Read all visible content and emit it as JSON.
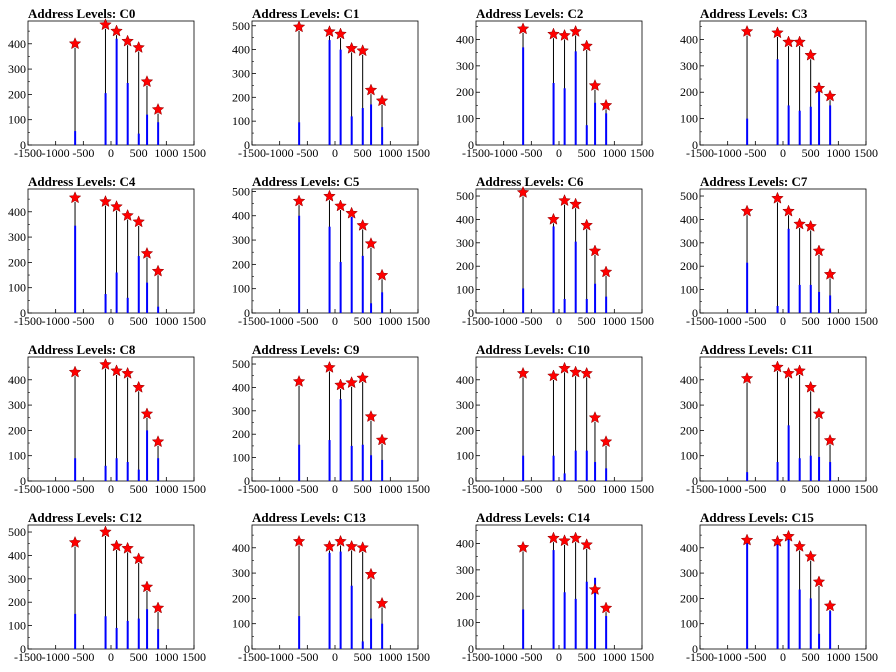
{
  "chart_data": [
    {
      "type": "bar",
      "title": "Address Levels: C0",
      "xlim": [
        -1500,
        1500
      ],
      "ylim": [
        0,
        490
      ],
      "yticks": [
        0,
        100,
        200,
        300,
        400
      ],
      "xticks": [
        "-1500",
        "-1000",
        "-500",
        "0",
        "500",
        "1000",
        "1500"
      ],
      "peaks": [
        {
          "x": -650,
          "y": 400,
          "blue": 55
        },
        {
          "x": -100,
          "y": 475,
          "blue": 205
        },
        {
          "x": 100,
          "y": 450,
          "blue": 420
        },
        {
          "x": 300,
          "y": 410,
          "blue": 245
        },
        {
          "x": 500,
          "y": 385,
          "blue": 45
        },
        {
          "x": 650,
          "y": 250,
          "blue": 120
        },
        {
          "x": 850,
          "y": 140,
          "blue": 90
        }
      ]
    },
    {
      "type": "bar",
      "title": "Address Levels: C1",
      "xlim": [
        -1500,
        1500
      ],
      "ylim": [
        0,
        520
      ],
      "yticks": [
        0,
        100,
        200,
        300,
        400,
        500
      ],
      "xticks": [
        "-1500",
        "-1000",
        "-500",
        "0",
        "500",
        "1000",
        "1500"
      ],
      "peaks": [
        {
          "x": -650,
          "y": 495,
          "blue": 95
        },
        {
          "x": -100,
          "y": 475,
          "blue": 440
        },
        {
          "x": 100,
          "y": 465,
          "blue": 400
        },
        {
          "x": 300,
          "y": 405,
          "blue": 120
        },
        {
          "x": 500,
          "y": 395,
          "blue": 155
        },
        {
          "x": 650,
          "y": 230,
          "blue": 170
        },
        {
          "x": 850,
          "y": 185,
          "blue": 75
        }
      ]
    },
    {
      "type": "bar",
      "title": "Address Levels: C2",
      "xlim": [
        -1500,
        1500
      ],
      "ylim": [
        0,
        470
      ],
      "yticks": [
        0,
        100,
        200,
        300,
        400
      ],
      "xticks": [
        "-1500",
        "-1000",
        "-500",
        "0",
        "500",
        "1000",
        "1500"
      ],
      "peaks": [
        {
          "x": -650,
          "y": 440,
          "blue": 370
        },
        {
          "x": -100,
          "y": 420,
          "blue": 235
        },
        {
          "x": 100,
          "y": 415,
          "blue": 215
        },
        {
          "x": 300,
          "y": 430,
          "blue": 355
        },
        {
          "x": 500,
          "y": 375,
          "blue": 75
        },
        {
          "x": 650,
          "y": 225,
          "blue": 160
        },
        {
          "x": 850,
          "y": 150,
          "blue": 120
        }
      ]
    },
    {
      "type": "bar",
      "title": "Address Levels: C3",
      "xlim": [
        -1500,
        1500
      ],
      "ylim": [
        0,
        470
      ],
      "yticks": [
        0,
        100,
        200,
        300,
        400
      ],
      "xticks": [
        "-1500",
        "-1000",
        "-500",
        "0",
        "500",
        "1000",
        "1500"
      ],
      "peaks": [
        {
          "x": -650,
          "y": 430,
          "blue": 100
        },
        {
          "x": -100,
          "y": 425,
          "blue": 325
        },
        {
          "x": 100,
          "y": 390,
          "blue": 150
        },
        {
          "x": 300,
          "y": 390,
          "blue": 130
        },
        {
          "x": 500,
          "y": 340,
          "blue": 145
        },
        {
          "x": 650,
          "y": 215,
          "blue": 235
        },
        {
          "x": 850,
          "y": 185,
          "blue": 150
        }
      ]
    },
    {
      "type": "bar",
      "title": "Address Levels: C4",
      "xlim": [
        -1500,
        1500
      ],
      "ylim": [
        0,
        490
      ],
      "yticks": [
        0,
        100,
        200,
        300,
        400
      ],
      "xticks": [
        "-1500",
        "-1000",
        "-500",
        "0",
        "500",
        "1000",
        "1500"
      ],
      "peaks": [
        {
          "x": -650,
          "y": 455,
          "blue": 345
        },
        {
          "x": -100,
          "y": 440,
          "blue": 75
        },
        {
          "x": 100,
          "y": 420,
          "blue": 160
        },
        {
          "x": 300,
          "y": 385,
          "blue": 60
        },
        {
          "x": 500,
          "y": 360,
          "blue": 225
        },
        {
          "x": 650,
          "y": 235,
          "blue": 120
        },
        {
          "x": 850,
          "y": 165,
          "blue": 25
        }
      ]
    },
    {
      "type": "bar",
      "title": "Address Levels: C5",
      "xlim": [
        -1500,
        1500
      ],
      "ylim": [
        0,
        510
      ],
      "yticks": [
        0,
        100,
        200,
        300,
        400,
        500
      ],
      "xticks": [
        "-1500",
        "-1000",
        "-500",
        "0",
        "500",
        "1000",
        "1500"
      ],
      "peaks": [
        {
          "x": -650,
          "y": 460,
          "blue": 400
        },
        {
          "x": -100,
          "y": 480,
          "blue": 355
        },
        {
          "x": 100,
          "y": 440,
          "blue": 210
        },
        {
          "x": 300,
          "y": 410,
          "blue": 395
        },
        {
          "x": 500,
          "y": 360,
          "blue": 235
        },
        {
          "x": 650,
          "y": 285,
          "blue": 40
        },
        {
          "x": 850,
          "y": 155,
          "blue": 85
        }
      ]
    },
    {
      "type": "bar",
      "title": "Address Levels: C6",
      "xlim": [
        -1500,
        1500
      ],
      "ylim": [
        0,
        530
      ],
      "yticks": [
        0,
        100,
        200,
        300,
        400,
        500
      ],
      "xticks": [
        "-1500",
        "-1000",
        "-500",
        "0",
        "500",
        "1000",
        "1500"
      ],
      "peaks": [
        {
          "x": -650,
          "y": 515,
          "blue": 105
        },
        {
          "x": -100,
          "y": 400,
          "blue": 370
        },
        {
          "x": 100,
          "y": 480,
          "blue": 60
        },
        {
          "x": 300,
          "y": 465,
          "blue": 305
        },
        {
          "x": 500,
          "y": 375,
          "blue": 60
        },
        {
          "x": 650,
          "y": 265,
          "blue": 125
        },
        {
          "x": 850,
          "y": 175,
          "blue": 70
        }
      ]
    },
    {
      "type": "bar",
      "title": "Address Levels: C7",
      "xlim": [
        -1500,
        1500
      ],
      "ylim": [
        0,
        530
      ],
      "yticks": [
        0,
        100,
        200,
        300,
        400,
        500
      ],
      "xticks": [
        "-1500",
        "-1000",
        "-500",
        "0",
        "500",
        "1000",
        "1500"
      ],
      "peaks": [
        {
          "x": -650,
          "y": 435,
          "blue": 215
        },
        {
          "x": -100,
          "y": 490,
          "blue": 30
        },
        {
          "x": 100,
          "y": 435,
          "blue": 360
        },
        {
          "x": 300,
          "y": 380,
          "blue": 120
        },
        {
          "x": 500,
          "y": 370,
          "blue": 120
        },
        {
          "x": 650,
          "y": 265,
          "blue": 90
        },
        {
          "x": 850,
          "y": 165,
          "blue": 75
        }
      ]
    },
    {
      "type": "bar",
      "title": "Address Levels: C8",
      "xlim": [
        -1500,
        1500
      ],
      "ylim": [
        0,
        490
      ],
      "yticks": [
        0,
        100,
        200,
        300,
        400
      ],
      "xticks": [
        "-1500",
        "-1000",
        "-500",
        "0",
        "500",
        "1000",
        "1500"
      ],
      "peaks": [
        {
          "x": -650,
          "y": 430,
          "blue": 90
        },
        {
          "x": -100,
          "y": 460,
          "blue": 60
        },
        {
          "x": 100,
          "y": 435,
          "blue": 90
        },
        {
          "x": 300,
          "y": 425,
          "blue": 75
        },
        {
          "x": 500,
          "y": 370,
          "blue": 45
        },
        {
          "x": 650,
          "y": 265,
          "blue": 200
        },
        {
          "x": 850,
          "y": 155,
          "blue": 90
        }
      ]
    },
    {
      "type": "bar",
      "title": "Address Levels: C9",
      "xlim": [
        -1500,
        1500
      ],
      "ylim": [
        0,
        530
      ],
      "yticks": [
        0,
        100,
        200,
        300,
        400,
        500
      ],
      "xticks": [
        "-1500",
        "-1000",
        "-500",
        "0",
        "500",
        "1000",
        "1500"
      ],
      "peaks": [
        {
          "x": -650,
          "y": 425,
          "blue": 155
        },
        {
          "x": -100,
          "y": 485,
          "blue": 175
        },
        {
          "x": 100,
          "y": 410,
          "blue": 350
        },
        {
          "x": 300,
          "y": 420,
          "blue": 150
        },
        {
          "x": 500,
          "y": 440,
          "blue": 155
        },
        {
          "x": 650,
          "y": 275,
          "blue": 110
        },
        {
          "x": 850,
          "y": 175,
          "blue": 90
        }
      ]
    },
    {
      "type": "bar",
      "title": "Address Levels: C10",
      "xlim": [
        -1500,
        1500
      ],
      "ylim": [
        0,
        490
      ],
      "yticks": [
        0,
        100,
        200,
        300,
        400
      ],
      "xticks": [
        "-1500",
        "-1000",
        "-500",
        "0",
        "500",
        "1000",
        "1500"
      ],
      "peaks": [
        {
          "x": -650,
          "y": 425,
          "blue": 100
        },
        {
          "x": -100,
          "y": 415,
          "blue": 100
        },
        {
          "x": 100,
          "y": 445,
          "blue": 30
        },
        {
          "x": 300,
          "y": 430,
          "blue": 120
        },
        {
          "x": 500,
          "y": 425,
          "blue": 120
        },
        {
          "x": 650,
          "y": 250,
          "blue": 75
        },
        {
          "x": 850,
          "y": 155,
          "blue": 50
        }
      ]
    },
    {
      "type": "bar",
      "title": "Address Levels: C11",
      "xlim": [
        -1500,
        1500
      ],
      "ylim": [
        0,
        490
      ],
      "yticks": [
        0,
        100,
        200,
        300,
        400
      ],
      "xticks": [
        "-1500",
        "-1000",
        "-500",
        "0",
        "500",
        "1000",
        "1500"
      ],
      "peaks": [
        {
          "x": -650,
          "y": 405,
          "blue": 35
        },
        {
          "x": -100,
          "y": 450,
          "blue": 75
        },
        {
          "x": 100,
          "y": 425,
          "blue": 220
        },
        {
          "x": 300,
          "y": 435,
          "blue": 90
        },
        {
          "x": 500,
          "y": 370,
          "blue": 100
        },
        {
          "x": 650,
          "y": 265,
          "blue": 95
        },
        {
          "x": 850,
          "y": 160,
          "blue": 75
        }
      ]
    },
    {
      "type": "bar",
      "title": "Address Levels: C12",
      "xlim": [
        -1500,
        1500
      ],
      "ylim": [
        0,
        530
      ],
      "yticks": [
        0,
        100,
        200,
        300,
        400,
        500
      ],
      "xticks": [
        "-1500",
        "-1000",
        "-500",
        "0",
        "500",
        "1000",
        "1500"
      ],
      "peaks": [
        {
          "x": -650,
          "y": 455,
          "blue": 150
        },
        {
          "x": -100,
          "y": 500,
          "blue": 140
        },
        {
          "x": 100,
          "y": 440,
          "blue": 90
        },
        {
          "x": 300,
          "y": 430,
          "blue": 120
        },
        {
          "x": 500,
          "y": 385,
          "blue": 130
        },
        {
          "x": 650,
          "y": 265,
          "blue": 170
        },
        {
          "x": 850,
          "y": 175,
          "blue": 85
        }
      ]
    },
    {
      "type": "bar",
      "title": "Address Levels: C13",
      "xlim": [
        -1500,
        1500
      ],
      "ylim": [
        0,
        490
      ],
      "yticks": [
        0,
        100,
        200,
        300,
        400
      ],
      "xticks": [
        "-1500",
        "-1000",
        "-500",
        "0",
        "500",
        "1000",
        "1500"
      ],
      "peaks": [
        {
          "x": -650,
          "y": 425,
          "blue": 130
        },
        {
          "x": -100,
          "y": 405,
          "blue": 380
        },
        {
          "x": 100,
          "y": 425,
          "blue": 385
        },
        {
          "x": 300,
          "y": 405,
          "blue": 250
        },
        {
          "x": 500,
          "y": 400,
          "blue": 30
        },
        {
          "x": 650,
          "y": 295,
          "blue": 120
        },
        {
          "x": 850,
          "y": 180,
          "blue": 100
        }
      ]
    },
    {
      "type": "bar",
      "title": "Address Levels: C14",
      "xlim": [
        -1500,
        1500
      ],
      "ylim": [
        0,
        470
      ],
      "yticks": [
        0,
        100,
        200,
        300,
        400
      ],
      "xticks": [
        "-1500",
        "-1000",
        "-500",
        "0",
        "500",
        "1000",
        "1500"
      ],
      "peaks": [
        {
          "x": -650,
          "y": 385,
          "blue": 150
        },
        {
          "x": -100,
          "y": 420,
          "blue": 375
        },
        {
          "x": 100,
          "y": 410,
          "blue": 215
        },
        {
          "x": 300,
          "y": 420,
          "blue": 190
        },
        {
          "x": 500,
          "y": 395,
          "blue": 255
        },
        {
          "x": 650,
          "y": 225,
          "blue": 270
        },
        {
          "x": 850,
          "y": 155,
          "blue": 125
        }
      ]
    },
    {
      "type": "bar",
      "title": "Address Levels: C15",
      "xlim": [
        -1500,
        1500
      ],
      "ylim": [
        0,
        490
      ],
      "yticks": [
        0,
        100,
        200,
        300,
        400
      ],
      "xticks": [
        "-1500",
        "-1000",
        "-500",
        "0",
        "500",
        "1000",
        "1500"
      ],
      "peaks": [
        {
          "x": -650,
          "y": 430,
          "blue": 430
        },
        {
          "x": -100,
          "y": 425,
          "blue": 415
        },
        {
          "x": 100,
          "y": 445,
          "blue": 440
        },
        {
          "x": 300,
          "y": 405,
          "blue": 235
        },
        {
          "x": 500,
          "y": 365,
          "blue": 200
        },
        {
          "x": 650,
          "y": 265,
          "blue": 60
        },
        {
          "x": 850,
          "y": 170,
          "blue": 150
        }
      ]
    }
  ]
}
